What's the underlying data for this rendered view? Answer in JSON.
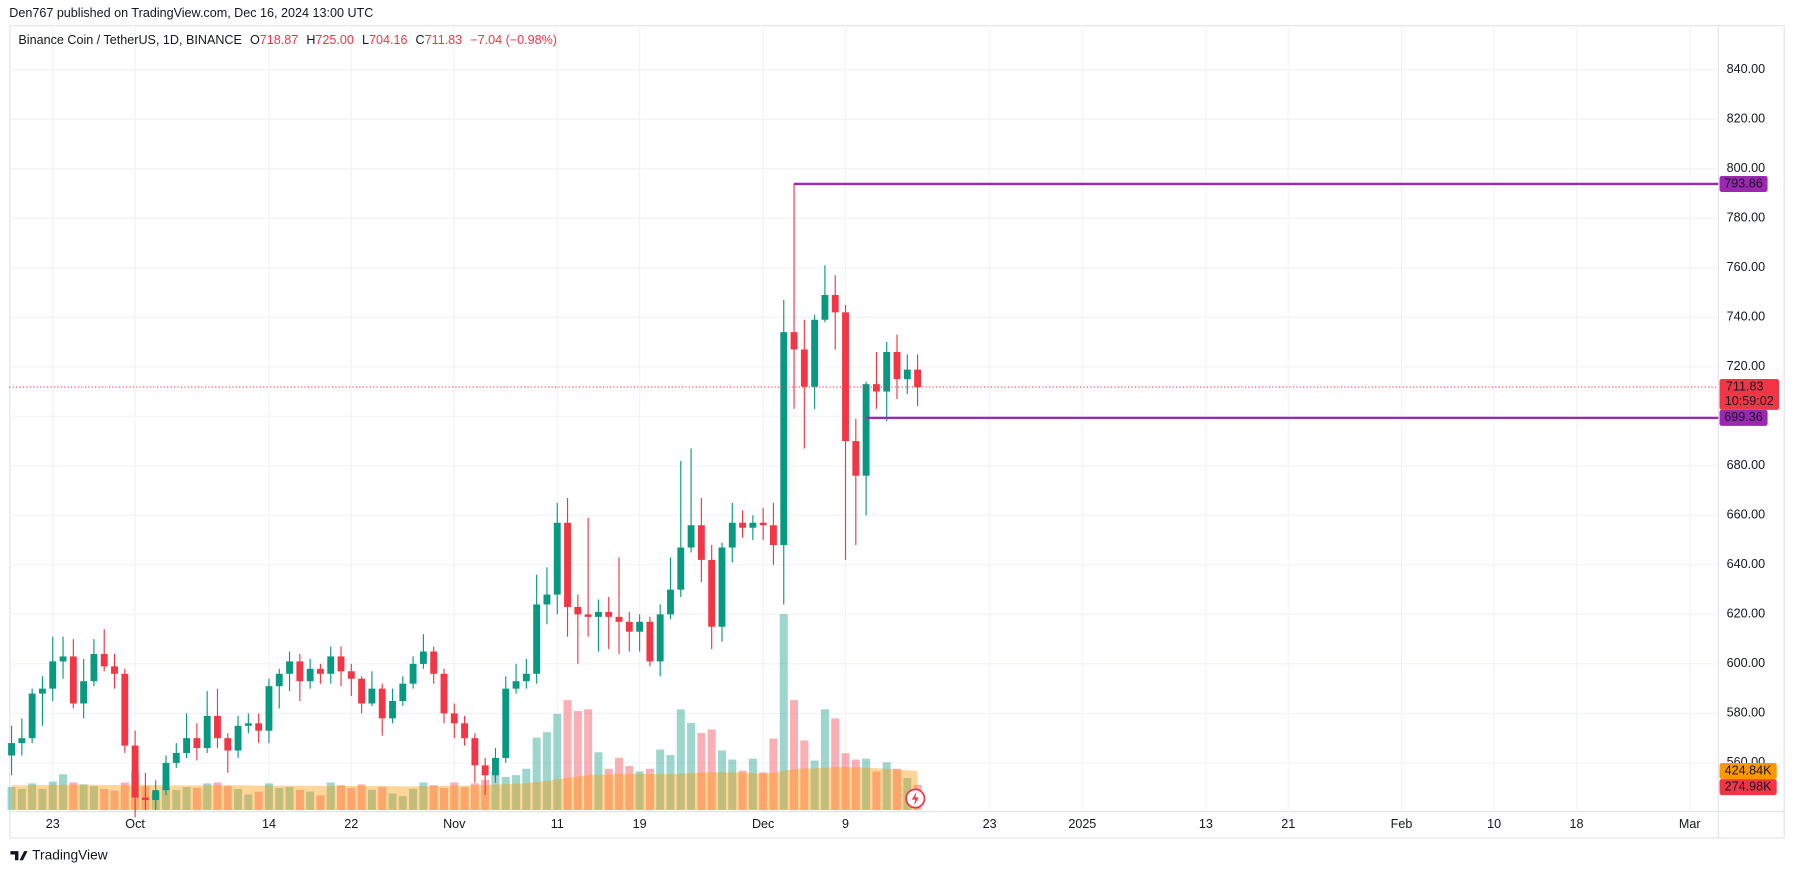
{
  "chart_data": {
    "type": "candlestick",
    "attribution": "Den767 published on TradingView.com, Dec 16, 2024 13:00 UTC",
    "title": "Binance Coin / TetherUS, 1D, BINANCE",
    "legend": [
      {
        "label": "O",
        "value": "718.87"
      },
      {
        "label": "H",
        "value": "725.00"
      },
      {
        "label": "L",
        "value": "704.16"
      },
      {
        "label": "C",
        "value": "711.83"
      }
    ],
    "change": "−7.04 (−0.98%)",
    "x": [
      "2024-09-19",
      "2024-09-20",
      "2024-09-21",
      "2024-09-22",
      "2024-09-23",
      "2024-09-24",
      "2024-09-25",
      "2024-09-26",
      "2024-09-27",
      "2024-09-28",
      "2024-09-29",
      "2024-09-30",
      "2024-10-01",
      "2024-10-02",
      "2024-10-03",
      "2024-10-04",
      "2024-10-05",
      "2024-10-06",
      "2024-10-07",
      "2024-10-08",
      "2024-10-09",
      "2024-10-10",
      "2024-10-11",
      "2024-10-12",
      "2024-10-13",
      "2024-10-14",
      "2024-10-15",
      "2024-10-16",
      "2024-10-17",
      "2024-10-18",
      "2024-10-19",
      "2024-10-20",
      "2024-10-21",
      "2024-10-22",
      "2024-10-23",
      "2024-10-24",
      "2024-10-25",
      "2024-10-26",
      "2024-10-27",
      "2024-10-28",
      "2024-10-29",
      "2024-10-30",
      "2024-10-31",
      "2024-11-01",
      "2024-11-02",
      "2024-11-03",
      "2024-11-04",
      "2024-11-05",
      "2024-11-06",
      "2024-11-07",
      "2024-11-08",
      "2024-11-09",
      "2024-11-10",
      "2024-11-11",
      "2024-11-12",
      "2024-11-13",
      "2024-11-14",
      "2024-11-15",
      "2024-11-16",
      "2024-11-17",
      "2024-11-18",
      "2024-11-19",
      "2024-11-20",
      "2024-11-21",
      "2024-11-22",
      "2024-11-23",
      "2024-11-24",
      "2024-11-25",
      "2024-11-26",
      "2024-11-27",
      "2024-11-28",
      "2024-11-29",
      "2024-11-30",
      "2024-12-01",
      "2024-12-02",
      "2024-12-03",
      "2024-12-04",
      "2024-12-05",
      "2024-12-06",
      "2024-12-07",
      "2024-12-08",
      "2024-12-09",
      "2024-12-10",
      "2024-12-11",
      "2024-12-12",
      "2024-12-13",
      "2024-12-14",
      "2024-12-15",
      "2024-12-16"
    ],
    "open": [
      563,
      568,
      570,
      588,
      590,
      601,
      603,
      584,
      593,
      604,
      599,
      596,
      567,
      546,
      545,
      549,
      560,
      564,
      570,
      566,
      579,
      570,
      565,
      575,
      576,
      573,
      591,
      596,
      601,
      593,
      598,
      596,
      603,
      597,
      594,
      584,
      590,
      578,
      585,
      592,
      600,
      605,
      596,
      580,
      576,
      570,
      559,
      555,
      562,
      590,
      593,
      596,
      624,
      628,
      657,
      623,
      620,
      619,
      621,
      619,
      617,
      613,
      617,
      601,
      620,
      630,
      647,
      656,
      642,
      615,
      647,
      657,
      655,
      657,
      656,
      648,
      734,
      727,
      712,
      739,
      749,
      742,
      690,
      676,
      713,
      710,
      726,
      715,
      718.87
    ],
    "high": [
      575,
      578,
      590,
      595,
      611,
      611,
      610,
      602,
      610,
      614,
      604,
      598,
      573,
      556,
      553,
      563,
      568,
      580,
      576,
      589,
      590,
      572,
      579,
      580,
      580,
      594,
      598,
      605,
      604,
      602,
      600,
      607,
      607,
      600,
      595,
      597,
      592,
      590,
      595,
      603,
      612,
      607,
      598,
      584,
      579,
      572,
      562,
      566,
      595,
      600,
      602,
      636,
      639,
      665,
      667,
      628,
      659,
      626,
      627,
      643,
      621,
      620,
      619,
      624,
      643,
      682,
      687,
      667,
      648,
      649,
      665,
      662,
      660,
      663,
      665,
      747,
      793.86,
      739,
      741,
      761,
      757,
      745,
      699,
      714,
      726,
      730,
      733,
      725,
      725
    ],
    "low": [
      555,
      563,
      568,
      575,
      585,
      594,
      582,
      578,
      591,
      597,
      590,
      564,
      538,
      541,
      541,
      547,
      558,
      562,
      561,
      564,
      566,
      556,
      562,
      572,
      568,
      568,
      582,
      589,
      585,
      590,
      592,
      592,
      591,
      587,
      580,
      583,
      571,
      576,
      583,
      590,
      598,
      592,
      576,
      570,
      567,
      552,
      547,
      552,
      560,
      588,
      590,
      592,
      616,
      620,
      611,
      600,
      611,
      605,
      606,
      604,
      605,
      605,
      599,
      595,
      618,
      627,
      645,
      633,
      606,
      609,
      641,
      651,
      650,
      650,
      640,
      624,
      703,
      687,
      703,
      738,
      727,
      642,
      648,
      660,
      703,
      698,
      707,
      709,
      704.16
    ],
    "close": [
      568,
      570,
      588,
      590,
      601,
      603,
      584,
      593,
      604,
      599,
      596,
      567,
      546,
      545,
      549,
      560,
      564,
      570,
      566,
      579,
      570,
      565,
      575,
      576,
      573,
      591,
      596,
      601,
      593,
      598,
      596,
      603,
      597,
      594,
      584,
      590,
      578,
      585,
      592,
      600,
      605,
      596,
      580,
      576,
      570,
      559,
      555,
      562,
      590,
      593,
      596,
      624,
      628,
      657,
      623,
      620,
      619,
      621,
      619,
      617,
      613,
      617,
      601,
      620,
      630,
      647,
      656,
      642,
      615,
      647,
      657,
      655,
      657,
      656,
      648,
      734,
      727,
      712,
      739,
      749,
      742,
      690,
      676,
      713,
      710,
      726,
      715,
      718.87,
      711.83
    ],
    "volume": {
      "values": [
        250000,
        230000,
        290000,
        230000,
        310000,
        390000,
        300000,
        280000,
        260000,
        230000,
        210000,
        300000,
        420000,
        260000,
        200000,
        240000,
        220000,
        250000,
        240000,
        290000,
        300000,
        260000,
        230000,
        170000,
        200000,
        290000,
        240000,
        250000,
        220000,
        200000,
        160000,
        300000,
        270000,
        240000,
        280000,
        220000,
        250000,
        180000,
        150000,
        230000,
        300000,
        270000,
        240000,
        300000,
        250000,
        290000,
        330000,
        420000,
        360000,
        380000,
        450000,
        790000,
        850000,
        1050000,
        1200000,
        1080000,
        1100000,
        630000,
        450000,
        570000,
        480000,
        420000,
        450000,
        660000,
        600000,
        1100000,
        950000,
        840000,
        880000,
        650000,
        550000,
        430000,
        560000,
        410000,
        780000,
        2140000,
        1200000,
        760000,
        540000,
        1100000,
        1000000,
        620000,
        550000,
        560000,
        420000,
        520000,
        450000,
        350000,
        274980
      ],
      "last_label": "274.98K"
    },
    "volume_ma": {
      "values": [
        270000,
        270000,
        272000,
        272000,
        274000,
        276000,
        276000,
        276000,
        275000,
        274000,
        272000,
        272000,
        275000,
        274000,
        272000,
        270000,
        268000,
        268000,
        268000,
        270000,
        272000,
        272000,
        270000,
        268000,
        266000,
        266000,
        266000,
        266000,
        265000,
        264000,
        262000,
        262000,
        262000,
        262000,
        263000,
        262000,
        262000,
        260000,
        258000,
        258000,
        260000,
        262000,
        264000,
        266000,
        266000,
        268000,
        272000,
        278000,
        282000,
        286000,
        292000,
        305000,
        318000,
        335000,
        352000,
        366000,
        380000,
        385000,
        388000,
        392000,
        394000,
        394000,
        392000,
        392000,
        390000,
        398000,
        404000,
        408000,
        412000,
        412000,
        410000,
        405000,
        402000,
        398000,
        404000,
        430000,
        445000,
        452000,
        455000,
        462000,
        470000,
        470000,
        466000,
        462000,
        455000,
        448000,
        440000,
        432000,
        424840
      ],
      "color": "#ff9800",
      "last_label": "424.84K"
    },
    "volume_ylim": [
      0,
      8575000
    ],
    "up_color": "#089981",
    "down_color": "#f23645",
    "ylim": [
      541,
      858
    ],
    "yticks": [
      {
        "value": 560,
        "label": "560.00"
      },
      {
        "value": 580,
        "label": "580.00"
      },
      {
        "value": 600,
        "label": "600.00"
      },
      {
        "value": 620,
        "label": "620.00"
      },
      {
        "value": 640,
        "label": "640.00"
      },
      {
        "value": 660,
        "label": "660.00"
      },
      {
        "value": 680,
        "label": "680.00"
      },
      {
        "value": 700,
        "label": "700.00"
      },
      {
        "value": 720,
        "label": "720.00"
      },
      {
        "value": 740,
        "label": "740.00"
      },
      {
        "value": 760,
        "label": "760.00"
      },
      {
        "value": 780,
        "label": "780.00"
      },
      {
        "value": 800,
        "label": "800.00"
      },
      {
        "value": 820,
        "label": "820.00"
      },
      {
        "value": 840,
        "label": "840.00"
      }
    ],
    "xlim": [
      "2024-09-18",
      "2025-03-04"
    ],
    "xticks": [
      {
        "value": "2024-09-23",
        "label": "23"
      },
      {
        "value": "2024-10-01",
        "label": "Oct"
      },
      {
        "value": "2024-10-14",
        "label": "14"
      },
      {
        "value": "2024-10-22",
        "label": "22"
      },
      {
        "value": "2024-11-01",
        "label": "Nov"
      },
      {
        "value": "2024-11-11",
        "label": "11"
      },
      {
        "value": "2024-11-19",
        "label": "19"
      },
      {
        "value": "2024-12-01",
        "label": "Dec"
      },
      {
        "value": "2024-12-09",
        "label": "9"
      },
      {
        "value": "2024-12-23",
        "label": "23"
      },
      {
        "value": "2025-01-01",
        "label": "2025"
      },
      {
        "value": "2025-01-13",
        "label": "13"
      },
      {
        "value": "2025-01-21",
        "label": "21"
      },
      {
        "value": "2025-02-01",
        "label": "Feb"
      },
      {
        "value": "2025-02-10",
        "label": "10"
      },
      {
        "value": "2025-02-18",
        "label": "18"
      },
      {
        "value": "2025-03-01",
        "label": "Mar"
      }
    ],
    "grid": true,
    "levels": [
      {
        "value": 793.86,
        "from": "2024-12-04",
        "color": "#9c27b0"
      },
      {
        "value": 699.36,
        "from": "2024-12-11",
        "color": "#9c27b0"
      }
    ],
    "last_price_countdown": "10:59:02",
    "footer": "TradingView"
  }
}
